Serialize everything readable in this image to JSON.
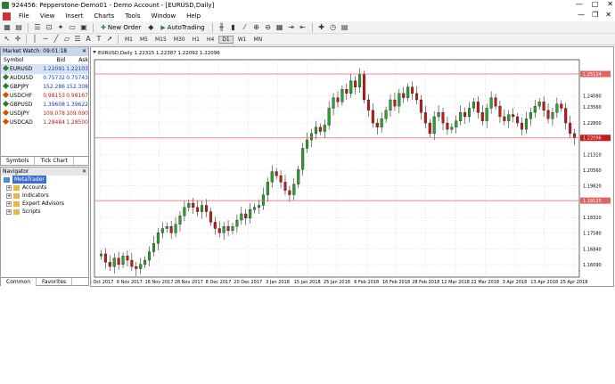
{
  "titlebar": {
    "title": "924456: Pepperstone-Demo01 - Demo Account - [EURUSD,Daily]",
    "min": "—",
    "max": "□",
    "close": "✕"
  },
  "menu": [
    "File",
    "View",
    "Insert",
    "Charts",
    "Tools",
    "Window",
    "Help"
  ],
  "mdi_buttons": {
    "min": "—",
    "restore": "❐",
    "close": "✕"
  },
  "toolbar": {
    "new_order": "New Order",
    "autotrading": "AutoTrading"
  },
  "timeframes": [
    "M1",
    "M5",
    "M15",
    "M30",
    "H1",
    "H4",
    "D1",
    "W1",
    "MN"
  ],
  "active_timeframe": "D1",
  "market_watch": {
    "title": "Market Watch: 09:01:18",
    "close": "✕",
    "columns": [
      "Symbol",
      "Bid",
      "Ask"
    ],
    "rows": [
      {
        "symbol": "EURUSD",
        "bid": "1.22091",
        "ask": "1.22103",
        "dir": "up"
      },
      {
        "symbol": "AUDUSD",
        "bid": "0.75732",
        "ask": "0.75743",
        "dir": "up"
      },
      {
        "symbol": "GBPJPY",
        "bid": "152.286",
        "ask": "152.308",
        "dir": "up"
      },
      {
        "symbol": "USDCHF",
        "bid": "0.98153",
        "ask": "0.98167",
        "dir": "down"
      },
      {
        "symbol": "GBPUSD",
        "bid": "1.39608",
        "ask": "1.39622",
        "dir": "up"
      },
      {
        "symbol": "USDJPY",
        "bid": "109.078",
        "ask": "109.090",
        "dir": "down"
      },
      {
        "symbol": "USDCAD",
        "bid": "1.28484",
        "ask": "1.28500",
        "dir": "down"
      }
    ],
    "tabs": [
      "Symbols",
      "Tick Chart"
    ]
  },
  "navigator": {
    "title": "Navigator",
    "close": "✕",
    "root": "MetaTrader",
    "items": [
      "Accounts",
      "Indicators",
      "Expert Advisors",
      "Scripts"
    ],
    "tabs": [
      "Common",
      "Favorites"
    ]
  },
  "chart_data": {
    "type": "candlestick",
    "title": "EURUSD,Daily  1.22315 1.22387 1.22092 1.22096",
    "x_labels": [
      "25 Oct 2017",
      "6 Nov 2017",
      "16 Nov 2017",
      "28 Nov 2017",
      "8 Dec 2017",
      "20 Dec 2017",
      "3 Jan 2018",
      "15 Jan 2018",
      "25 Jan 2018",
      "6 Feb 2018",
      "16 Feb 2018",
      "28 Feb 2018",
      "12 Mar 2018",
      "22 Mar 2018",
      "3 Apr 2018",
      "13 Apr 2018",
      "25 Apr 2018"
    ],
    "y_ticks": [
      "1.24080",
      "1.23560",
      "1.22800",
      "1.22040",
      "1.21310",
      "1.20560",
      "1.19820",
      "1.19060",
      "1.18320",
      "1.17580",
      "1.16840",
      "1.16090"
    ],
    "ylim": [
      1.155,
      1.258
    ],
    "hlines": [
      {
        "value": 1.25124,
        "label": "1.25124"
      },
      {
        "value": 1.22096,
        "label": "1.22096"
      },
      {
        "value": 1.19125,
        "label": "1.19125"
      }
    ],
    "up_color": "#2ca02c",
    "down_color": "#c41a1a",
    "line_color": "#e06666",
    "closes": [
      1.166,
      1.162,
      1.16,
      1.164,
      1.161,
      1.165,
      1.163,
      1.16,
      1.159,
      1.161,
      1.163,
      1.167,
      1.171,
      1.176,
      1.178,
      1.179,
      1.176,
      1.18,
      1.184,
      1.188,
      1.19,
      1.188,
      1.186,
      1.189,
      1.186,
      1.181,
      1.178,
      1.176,
      1.179,
      1.177,
      1.179,
      1.182,
      1.185,
      1.183,
      1.187,
      1.188,
      1.189,
      1.194,
      1.2,
      1.205,
      1.203,
      1.2,
      1.196,
      1.194,
      1.199,
      1.206,
      1.216,
      1.22,
      1.223,
      1.226,
      1.224,
      1.227,
      1.235,
      1.24,
      1.238,
      1.244,
      1.242,
      1.248,
      1.245,
      1.251,
      1.239,
      1.234,
      1.228,
      1.226,
      1.23,
      1.234,
      1.239,
      1.236,
      1.242,
      1.24,
      1.245,
      1.242,
      1.239,
      1.233,
      1.228,
      1.223,
      1.231,
      1.233,
      1.228,
      1.225,
      1.226,
      1.229,
      1.233,
      1.231,
      1.235,
      1.238,
      1.233,
      1.229,
      1.235,
      1.24,
      1.236,
      1.231,
      1.229,
      1.232,
      1.231,
      1.228,
      1.225,
      1.23,
      1.233,
      1.236,
      1.238,
      1.234,
      1.23,
      1.233,
      1.237,
      1.235,
      1.228,
      1.223,
      1.221
    ]
  }
}
